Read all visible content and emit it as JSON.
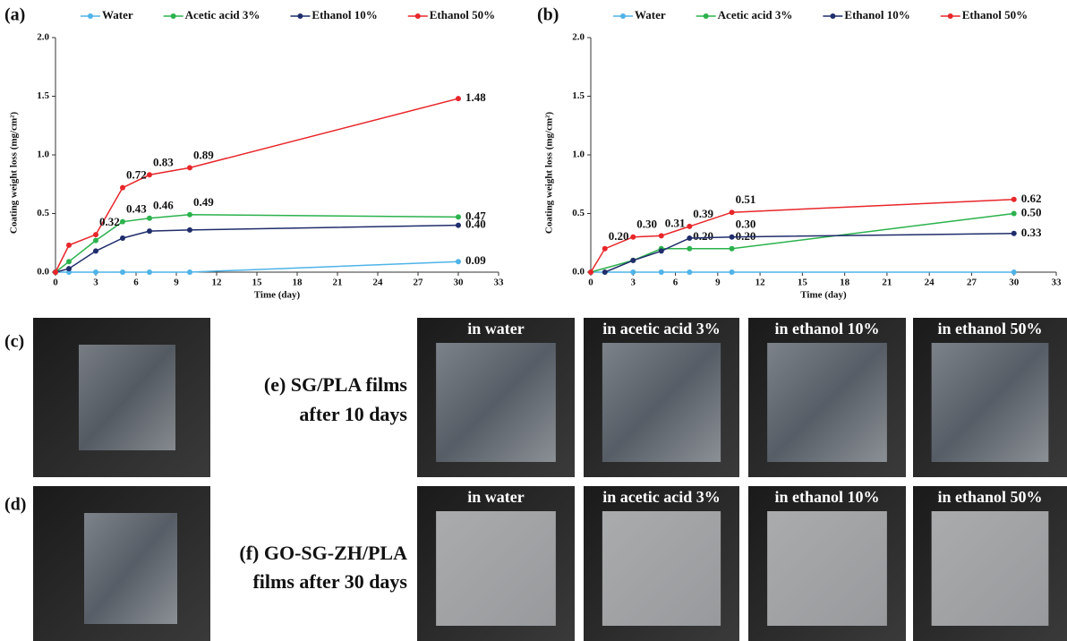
{
  "chart_data": [
    {
      "type": "line",
      "title": "(a)",
      "x_label": "Time (day)",
      "y_label": "Coating weight loss (mg/cm²)",
      "legend": "top",
      "xlim": [
        0,
        33
      ],
      "xticks": [
        0,
        3,
        6,
        9,
        12,
        15,
        18,
        21,
        24,
        27,
        30,
        33
      ],
      "ylim": [
        0,
        2.0
      ],
      "yticks": [
        {
          "value": 0,
          "label": "0.0"
        },
        0.5,
        {
          "value": 1,
          "label": "1.0"
        },
        1.5,
        {
          "value": 2,
          "label": "2.0"
        }
      ],
      "series": [
        {
          "name": "Water",
          "color": "#4fb3e8",
          "x": [
            0,
            1,
            3,
            5,
            7,
            10,
            30
          ],
          "values": [
            0,
            0,
            0,
            0,
            0,
            0,
            0.09
          ],
          "value_labels": [
            null,
            null,
            null,
            null,
            null,
            null,
            "0.09"
          ]
        },
        {
          "name": "Acetic acid 3%",
          "color": "#2bb24c",
          "x": [
            0,
            1,
            3,
            5,
            7,
            10,
            30
          ],
          "values": [
            0,
            0.09,
            0.27,
            0.43,
            0.46,
            0.49,
            0.47
          ],
          "value_labels": [
            null,
            null,
            null,
            "0.43",
            "0.46",
            "0.49",
            "0.47"
          ]
        },
        {
          "name": "Ethanol 10%",
          "color": "#1f2d6b",
          "x": [
            0,
            1,
            3,
            5,
            7,
            10,
            30
          ],
          "values": [
            0,
            0.03,
            0.18,
            0.29,
            0.35,
            0.36,
            0.4
          ],
          "value_labels": [
            null,
            null,
            null,
            null,
            null,
            null,
            "0.40"
          ]
        },
        {
          "name": "Ethanol 50%",
          "color": "#e8262a",
          "x": [
            0,
            1,
            3,
            5,
            7,
            10,
            30
          ],
          "values": [
            0,
            0.23,
            0.32,
            0.72,
            0.83,
            0.89,
            1.48
          ],
          "value_labels": [
            null,
            null,
            "0.32",
            "0.72",
            "0.83",
            "0.89",
            "1.48"
          ]
        }
      ]
    },
    {
      "type": "line",
      "title": "(b)",
      "x_label": "Time (day)",
      "y_label": "Coating weight loss (mg/cm²)",
      "legend": "top",
      "xlim": [
        0,
        33
      ],
      "xticks": [
        0,
        3,
        6,
        9,
        12,
        15,
        18,
        21,
        24,
        27,
        30,
        33
      ],
      "ylim": [
        0,
        2.0
      ],
      "yticks": [
        {
          "value": 0,
          "label": "0.0"
        },
        0.5,
        {
          "value": 1,
          "label": "1.0"
        },
        1.5,
        {
          "value": 2,
          "label": "2.0"
        }
      ],
      "series": [
        {
          "name": "Water",
          "color": "#4fb3e8",
          "x": [
            0,
            3,
            5,
            7,
            10,
            30
          ],
          "values": [
            0,
            0,
            0,
            0,
            0,
            0
          ],
          "value_labels": [
            null,
            null,
            null,
            null,
            null,
            null
          ]
        },
        {
          "name": "Acetic acid 3%",
          "color": "#2bb24c",
          "x": [
            0,
            3,
            5,
            7,
            10,
            30
          ],
          "values": [
            0,
            0.1,
            0.2,
            0.2,
            0.2,
            0.5
          ],
          "value_labels": [
            null,
            null,
            null,
            "0.20",
            "0.20",
            "0.50"
          ]
        },
        {
          "name": "Ethanol 10%",
          "color": "#1f2d6b",
          "x": [
            1,
            3,
            5,
            7,
            10,
            30
          ],
          "values": [
            0,
            0.1,
            0.18,
            0.29,
            0.3,
            0.33
          ],
          "value_labels": [
            null,
            null,
            null,
            null,
            "0.30",
            "0.33"
          ]
        },
        {
          "name": "Ethanol 50%",
          "color": "#e8262a",
          "x": [
            0,
            1,
            3,
            5,
            7,
            10,
            30
          ],
          "values": [
            0,
            0.2,
            0.3,
            0.31,
            0.39,
            0.51,
            0.62
          ],
          "value_labels": [
            null,
            "0.20",
            "0.30",
            "0.31",
            "0.39",
            "0.51",
            "0.62"
          ]
        }
      ]
    }
  ],
  "photos": {
    "c": "(c)",
    "d": "(d)",
    "e": [
      "(e) SG/PLA films",
      "after 10 days"
    ],
    "f": [
      "(f) GO-SG-ZH/PLA",
      "films after 30 days"
    ],
    "row_e": [
      "in water",
      "in acetic acid 3%",
      "in ethanol 10%",
      "in ethanol 50%"
    ],
    "row_f": [
      "in water",
      "in acetic acid 3%",
      "in ethanol 10%",
      "in ethanol 50%"
    ]
  }
}
